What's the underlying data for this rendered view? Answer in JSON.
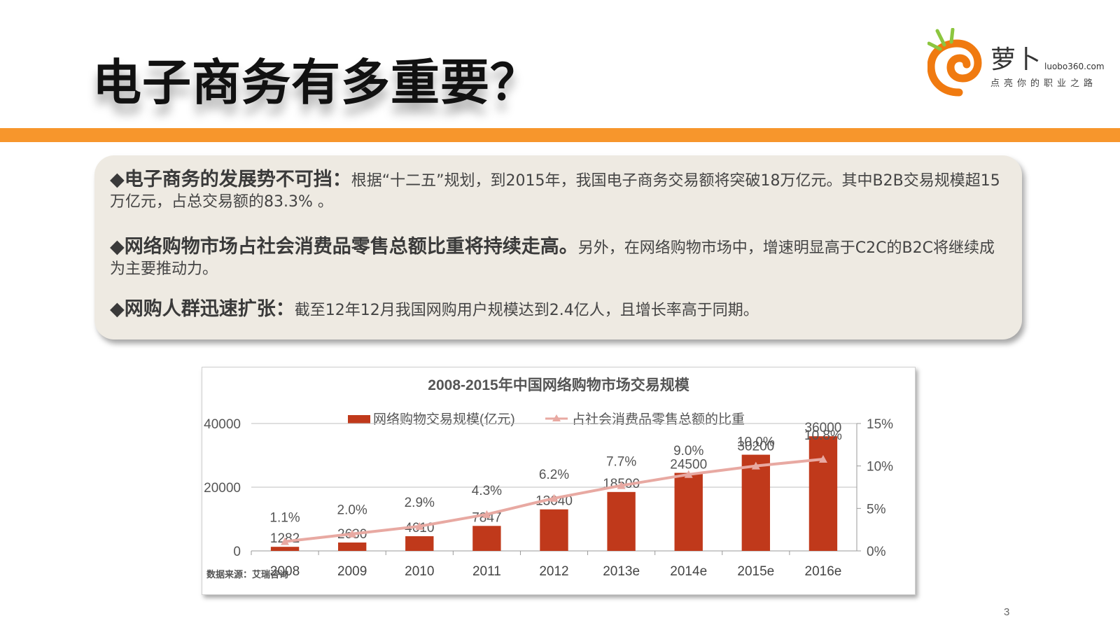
{
  "slide": {
    "title": "电子商务有多重要？",
    "page_number": "3"
  },
  "logo": {
    "name": "萝卜",
    "domain": "luobo360.com",
    "slogan": "点亮你的职业之路",
    "colors": {
      "orange": "#f07a10",
      "green": "#8cc63f"
    }
  },
  "bullets": [
    {
      "heading": "◆电子商务的发展势不可挡：",
      "text": "根据“十二五”规划，到2015年，我国电子商务交易额将突破18万亿元。其中B2B交易规模超15万亿元，占总交易额的83.3% 。"
    },
    {
      "heading": "◆网络购物市场占社会消费品零售总额比重将持续走高。",
      "text": "另外，在网络购物市场中，增速明显高于C2C的B2C将继续成为主要推动力。"
    },
    {
      "heading": "◆网购人群迅速扩张：",
      "text": "截至12年12月我国网购用户规模达到2.4亿人，且增长率高于同期。"
    }
  ],
  "colors": {
    "accent_bar": "#f7962c",
    "bar": "#c0391b",
    "line": "#e8a9a2"
  },
  "chart_data": {
    "type": "bar",
    "title": "2008-2015年中国网络购物市场交易规模",
    "categories": [
      "2008",
      "2009",
      "2010",
      "2011",
      "2012",
      "2013e",
      "2014e",
      "2015e",
      "2016e"
    ],
    "series": [
      {
        "name": "网络购物交易规模(亿元)",
        "type": "bar",
        "axis": "left",
        "values": [
          1282,
          2630,
          4610,
          7847,
          13040,
          18500,
          24500,
          30200,
          36000
        ],
        "labels": [
          "1282",
          "2630",
          "4610",
          "7847",
          "13040",
          "18500",
          "24500",
          "30200",
          "36000"
        ]
      },
      {
        "name": "占社会消费品零售总额的比重",
        "type": "line",
        "axis": "right",
        "values": [
          1.1,
          2.0,
          2.9,
          4.3,
          6.2,
          7.7,
          9.0,
          10.0,
          10.8
        ],
        "labels": [
          "1.1%",
          "2.0%",
          "2.9%",
          "4.3%",
          "6.2%",
          "7.7%",
          "9.0%",
          "10.0%",
          "10.8%"
        ]
      }
    ],
    "y_left": {
      "range": [
        0,
        40000
      ],
      "ticks": [
        "0",
        "20000",
        "40000"
      ],
      "tick_values": [
        0,
        20000,
        40000
      ]
    },
    "y_right": {
      "range": [
        0,
        15
      ],
      "ticks": [
        "0%",
        "5%",
        "10%",
        "15%"
      ],
      "tick_values": [
        0,
        5,
        10,
        15
      ]
    },
    "legend_position": "top",
    "source": "数据来源：艾瑞咨询"
  }
}
